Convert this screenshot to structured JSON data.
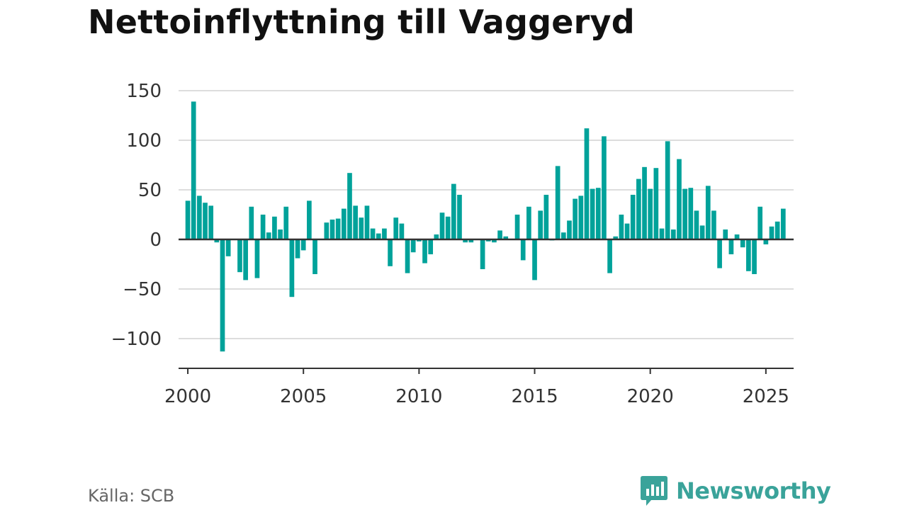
{
  "title": "Nettoinflyttning till Vaggeryd",
  "source": "Källa: SCB",
  "logo": {
    "text": "Newsworthy",
    "icon": "newsworthy-bar-chart-bubble-icon",
    "color": "#3aa39a"
  },
  "colors": {
    "bar": "#00a29a",
    "grid": "#dddddd",
    "axis": "#333333",
    "text": "#333333"
  },
  "chart_data": {
    "type": "bar",
    "x_start": 2000,
    "x_step": 0.25,
    "xlim": [
      1999.6,
      2026.2
    ],
    "ylim": [
      -130,
      150
    ],
    "yticks": [
      150,
      100,
      50,
      0,
      -50,
      -100
    ],
    "ytick_labels": [
      "150",
      "100",
      "50",
      "0",
      "−50",
      "−100"
    ],
    "xticks": [
      2000,
      2005,
      2010,
      2015,
      2020,
      2025
    ],
    "xtick_labels": [
      "2000",
      "2005",
      "2010",
      "2015",
      "2020",
      "2025"
    ],
    "grid": true,
    "values": [
      39,
      139,
      44,
      37,
      34,
      -3,
      -113,
      -17,
      0,
      -33,
      -41,
      33,
      -39,
      25,
      7,
      23,
      10,
      33,
      -58,
      -19,
      -11,
      39,
      -35,
      0,
      17,
      20,
      21,
      31,
      67,
      34,
      22,
      34,
      11,
      6,
      11,
      -27,
      22,
      16,
      -34,
      -13,
      -2,
      -24,
      -15,
      5,
      27,
      23,
      56,
      45,
      -3,
      -3,
      0,
      -30,
      -2,
      -3,
      9,
      3,
      0,
      25,
      -21,
      33,
      -41,
      29,
      45,
      -1,
      74,
      7,
      19,
      41,
      44,
      112,
      51,
      52,
      104,
      -34,
      3,
      25,
      16,
      45,
      61,
      73,
      51,
      72,
      11,
      99,
      10,
      81,
      51,
      52,
      29,
      14,
      54,
      29,
      -29,
      10,
      -15,
      5,
      -8,
      -32,
      -35,
      33,
      -5,
      13,
      18,
      31
    ]
  }
}
